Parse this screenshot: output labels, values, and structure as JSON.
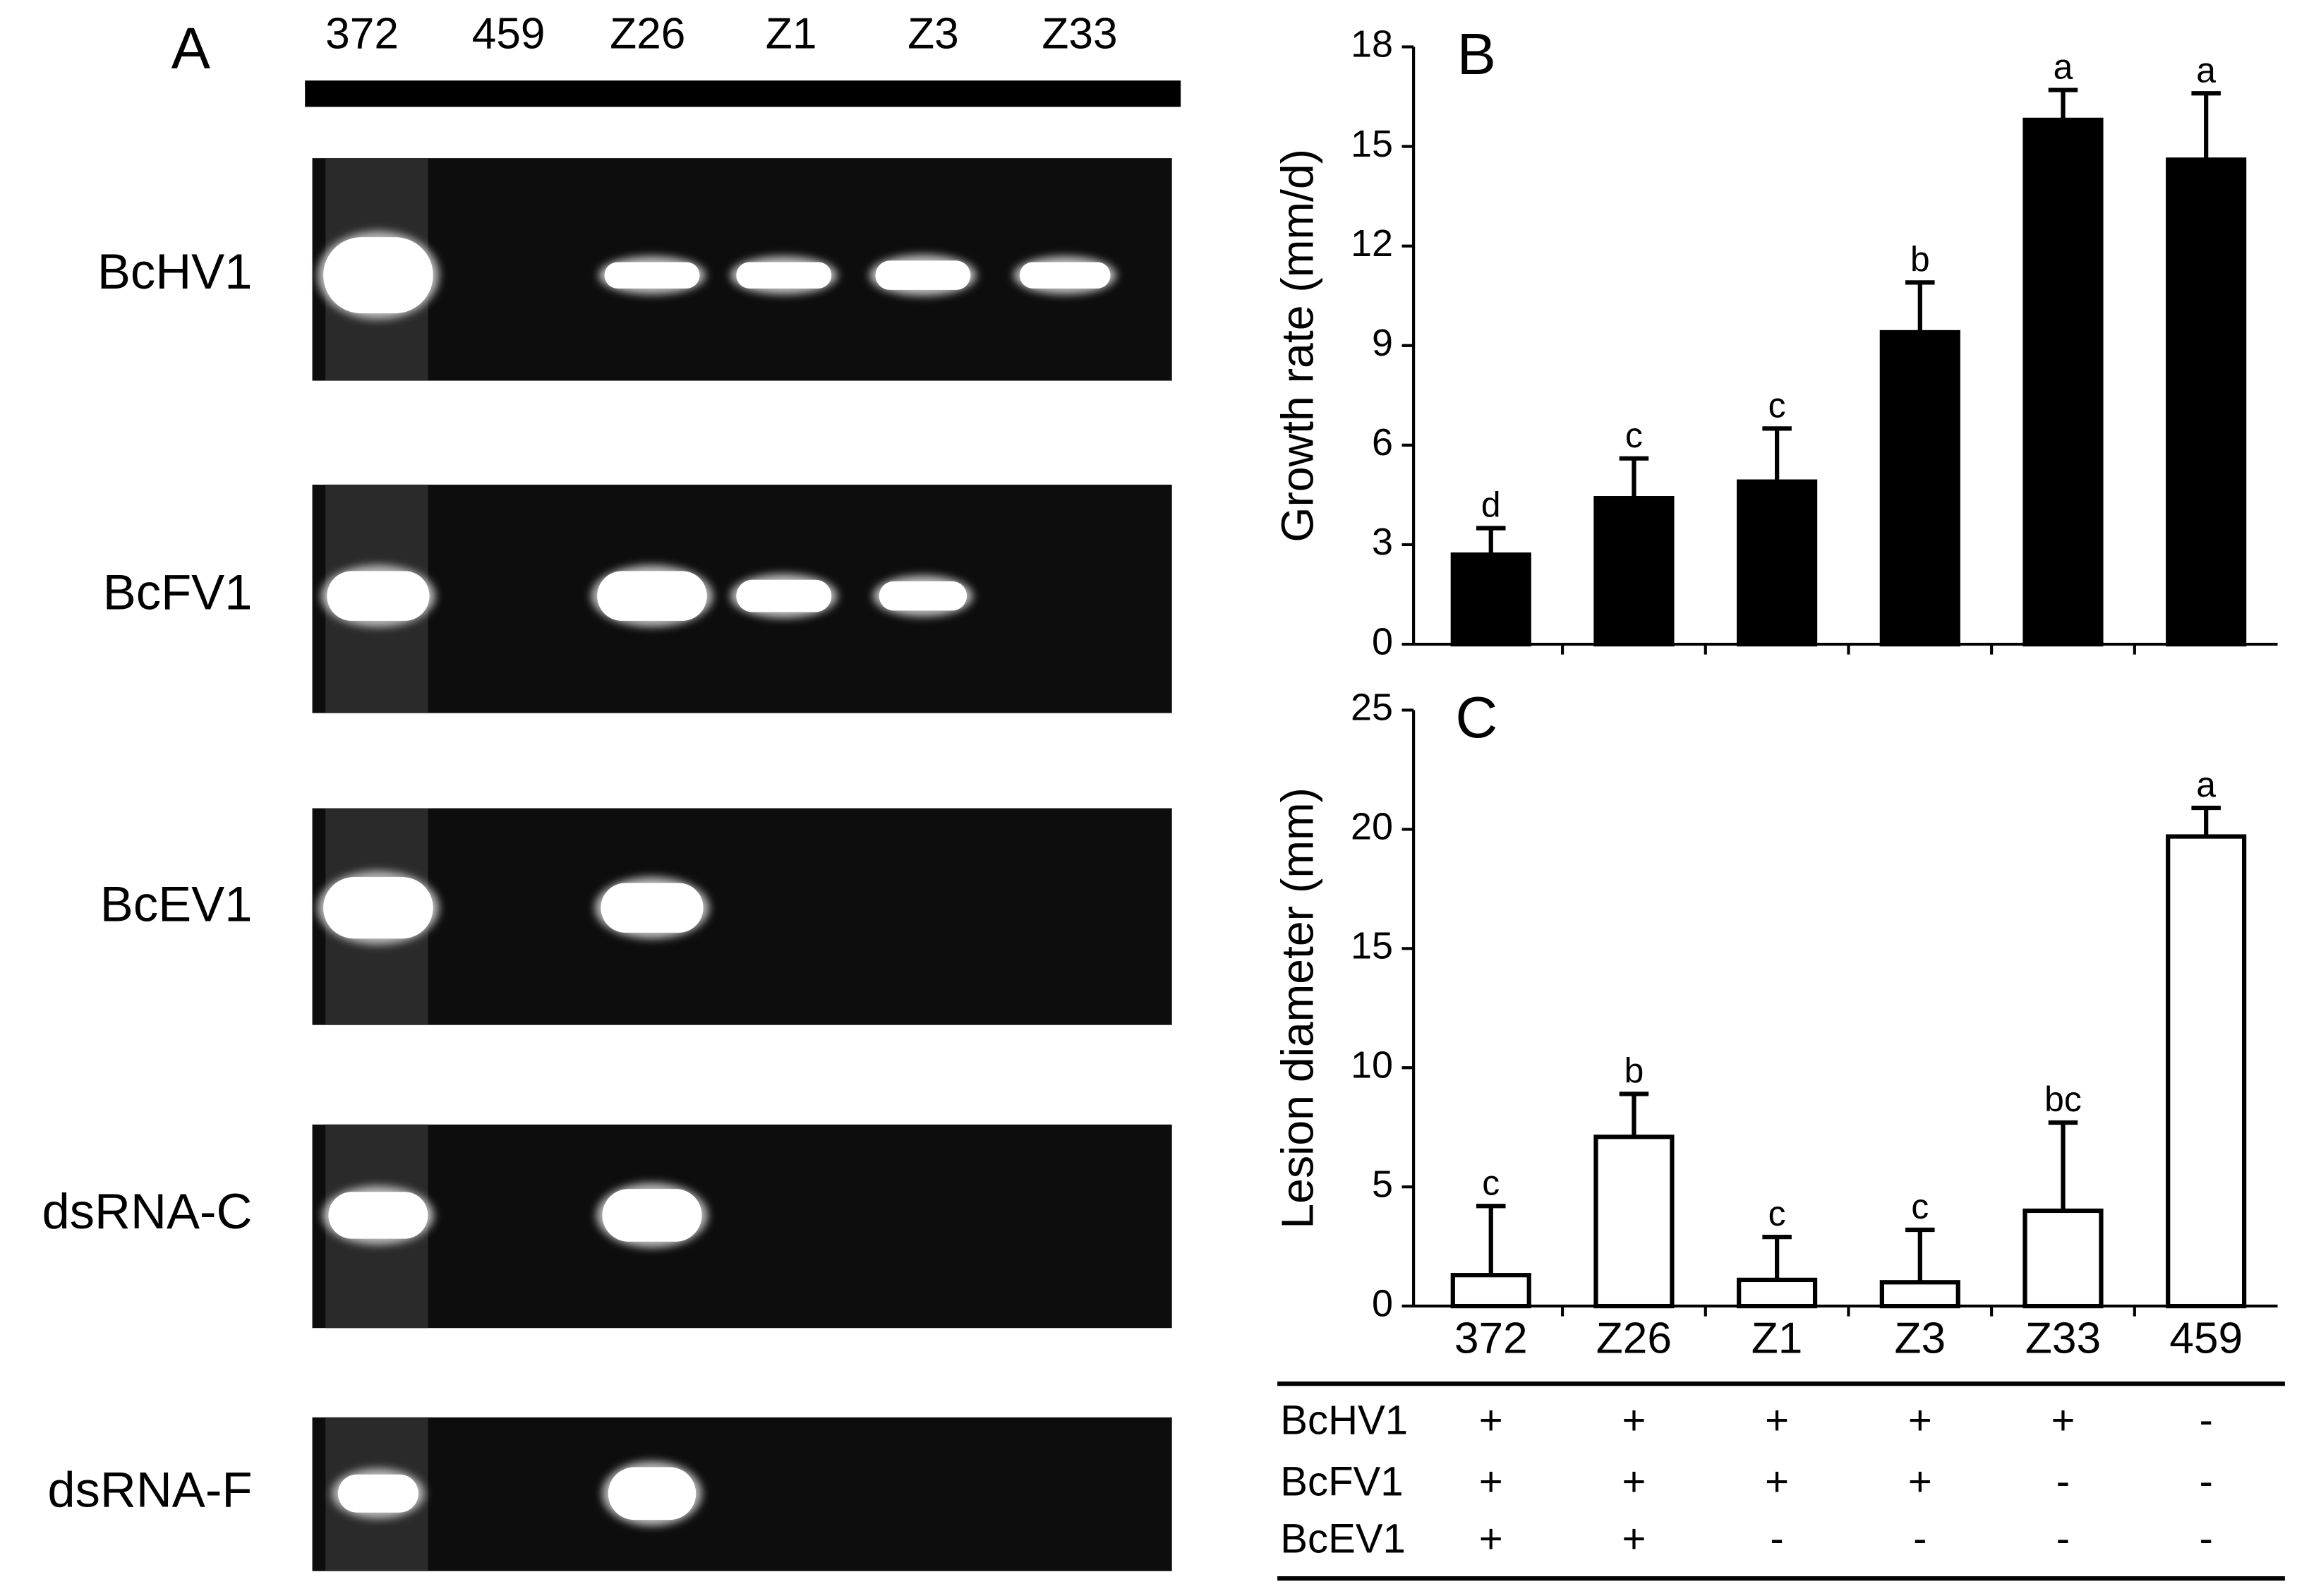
{
  "gel": {
    "panel_label": "A",
    "lanes": [
      "372",
      "459",
      "Z26",
      "Z1",
      "Z3",
      "Z33"
    ],
    "rows": [
      "BcHV1",
      "BcFV1",
      "BcEV1",
      "dsRNA-C",
      "dsRNA-F"
    ]
  },
  "chart_data": [
    {
      "type": "bar",
      "panel_label": "B",
      "y_label": "Growth rate (mm/d)",
      "color": "#000000",
      "edge_color": "#000000",
      "values": [
        2.7,
        4.4,
        4.9,
        9.4,
        15.8,
        14.6
      ],
      "errors": [
        0.8,
        1.2,
        1.6,
        1.5,
        0.9,
        2.0
      ],
      "annotations": [
        "d",
        "c",
        "c",
        "b",
        "a",
        "a"
      ],
      "ylim": [
        0,
        18
      ],
      "yticks": [
        0,
        3,
        6,
        9,
        12,
        15,
        18
      ]
    },
    {
      "type": "bar",
      "panel_label": "C",
      "y_label": "Lesion diameter (mm)",
      "color": "#ffffff",
      "edge_color": "#000000",
      "categories": [
        "372",
        "Z26",
        "Z1",
        "Z3",
        "Z33",
        "459"
      ],
      "values": [
        1.3,
        7.1,
        1.1,
        1.0,
        4.0,
        19.7
      ],
      "errors": [
        2.9,
        1.8,
        1.8,
        2.2,
        3.7,
        1.2
      ],
      "annotations": [
        "c",
        "b",
        "c",
        "c",
        "bc",
        "a"
      ],
      "ylim": [
        0,
        25
      ],
      "yticks": [
        0,
        5,
        10,
        15,
        20,
        25
      ]
    }
  ],
  "table": {
    "row_labels": [
      "BcHV1",
      "BcFV1",
      "BcEV1"
    ],
    "rows": [
      [
        "+",
        "+",
        "+",
        "+",
        "+",
        "-"
      ],
      [
        "+",
        "+",
        "+",
        "+",
        "-",
        "-"
      ],
      [
        "+",
        "+",
        "-",
        "-",
        "-",
        "-"
      ]
    ]
  }
}
